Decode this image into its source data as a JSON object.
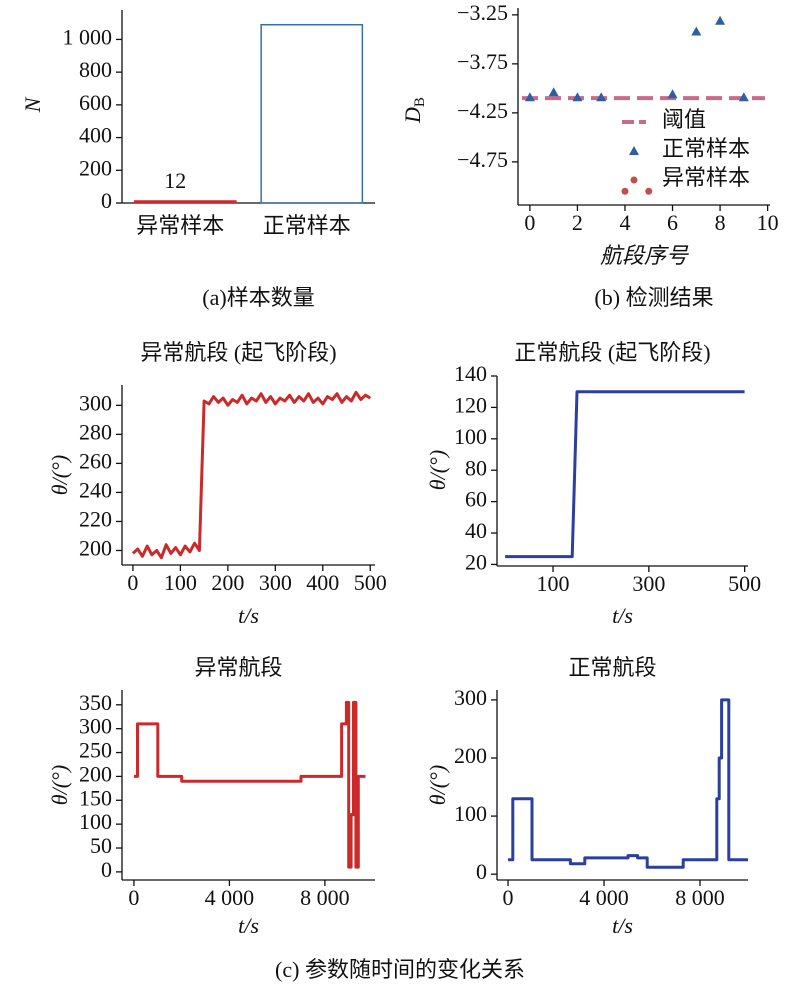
{
  "chart_data": [
    {
      "type": "bar",
      "caption": "(a)样本数量",
      "ylabel": "N",
      "categories": [
        "异常样本",
        "正常样本"
      ],
      "values": [
        12,
        1090
      ],
      "colors": [
        "#cc2a2a",
        "#3a6ea8"
      ],
      "bar_styles": [
        "filled",
        "outline"
      ],
      "data_labels": [
        true,
        false
      ],
      "ylim": [
        0,
        1180
      ],
      "yticks": [
        0,
        200,
        400,
        600,
        800,
        {
          "value": 1000,
          "label": "1 000"
        }
      ]
    },
    {
      "type": "scatter",
      "caption": "(b) 检测结果",
      "xlabel": "航段序号",
      "ylabel": {
        "main": "D",
        "sub": "B"
      },
      "series": [
        {
          "name": "正常样本",
          "color": "#2e5fa3",
          "marker": "triangle",
          "x": [
            0,
            1,
            2,
            3,
            6,
            7,
            8,
            9
          ],
          "values": [
            -4.09,
            -4.04,
            -4.09,
            -4.09,
            -4.06,
            -3.42,
            -3.31,
            -4.09
          ]
        },
        {
          "name": "异常样本",
          "color": "#c0504d",
          "marker": "circle",
          "x": [
            4,
            5
          ],
          "values": [
            -5.05,
            -5.05
          ]
        }
      ],
      "threshold": {
        "name": "阈值",
        "value": -4.1,
        "color": "#c96a8a"
      },
      "legend": "lower right",
      "xlim": [
        -0.5,
        10.1
      ],
      "xticks": [
        0,
        2,
        4,
        6,
        8,
        10
      ],
      "ylim": [
        -5.19,
        -3.18
      ],
      "yticks": [
        {
          "value": -3.25,
          "label": "−3.25"
        },
        {
          "value": -3.75,
          "label": "−3.75"
        },
        {
          "value": -4.25,
          "label": "−4.25"
        },
        {
          "value": -4.75,
          "label": "−4.75"
        }
      ]
    },
    {
      "type": "line",
      "title": "异常航段 (起飞阶段)",
      "xlabel": "t/s",
      "ylabel": "θ/(°)",
      "color": "#cc2a2a",
      "x": [
        0,
        10,
        20,
        30,
        40,
        50,
        60,
        70,
        80,
        90,
        100,
        110,
        120,
        130,
        140,
        150,
        160,
        170,
        180,
        190,
        200,
        210,
        220,
        230,
        240,
        250,
        260,
        270,
        280,
        290,
        300,
        310,
        320,
        330,
        340,
        350,
        360,
        370,
        380,
        390,
        400,
        410,
        420,
        430,
        440,
        450,
        460,
        470,
        480,
        490,
        500
      ],
      "values": [
        198,
        201,
        196,
        203,
        197,
        200,
        195,
        204,
        198,
        202,
        197,
        203,
        199,
        205,
        200,
        303,
        301,
        306,
        302,
        305,
        300,
        304,
        302,
        307,
        301,
        305,
        303,
        308,
        302,
        306,
        301,
        305,
        303,
        307,
        302,
        306,
        303,
        308,
        302,
        305,
        301,
        306,
        304,
        308,
        302,
        306,
        303,
        309,
        304,
        307,
        305
      ],
      "xlim": [
        -23,
        510
      ],
      "xticks": [
        0,
        100,
        200,
        300,
        400,
        500
      ],
      "ylim": [
        190,
        314
      ],
      "yticks": [
        200,
        220,
        240,
        260,
        280,
        300
      ]
    },
    {
      "type": "line",
      "title": "正常航段 (起飞阶段)",
      "xlabel": "t/s",
      "ylabel": "θ/(°)",
      "color": "#2a3f9e",
      "x": [
        0,
        140,
        150,
        500
      ],
      "values": [
        25,
        25,
        130,
        130
      ],
      "xlim": [
        -17,
        507
      ],
      "xticks": [
        100,
        300,
        500
      ],
      "ylim": [
        19,
        140
      ],
      "yticks": [
        20,
        40,
        60,
        80,
        100,
        120,
        140
      ]
    },
    {
      "type": "line",
      "title": "异常航段",
      "xlabel": "t/s",
      "ylabel": "θ/(°)",
      "color": "#cc2a2a",
      "x": [
        0,
        150,
        150,
        1000,
        1000,
        2000,
        2000,
        7000,
        7000,
        8700,
        8700,
        8900,
        8900,
        9000,
        9000,
        9100,
        9100,
        9200,
        9200,
        9300,
        9300,
        9400,
        9400,
        9700
      ],
      "values": [
        200,
        200,
        310,
        310,
        200,
        200,
        190,
        190,
        200,
        200,
        310,
        310,
        355,
        355,
        10,
        10,
        120,
        120,
        355,
        355,
        10,
        10,
        200,
        200
      ],
      "xlim": [
        -500,
        10100
      ],
      "xticks": [
        0,
        {
          "value": 4000,
          "label": "4 000"
        },
        {
          "value": 8000,
          "label": "8 000"
        }
      ],
      "ylim": [
        -17,
        381
      ],
      "yticks": [
        0,
        50,
        100,
        150,
        200,
        250,
        300,
        350
      ]
    },
    {
      "type": "line",
      "title": "正常航段",
      "xlabel": "t/s",
      "ylabel": "θ/(°)",
      "color": "#2a3f9e",
      "x": [
        0,
        200,
        200,
        1000,
        1000,
        2600,
        2600,
        3200,
        3200,
        5000,
        5000,
        5400,
        5400,
        5800,
        5800,
        7300,
        7300,
        8700,
        8700,
        8800,
        8800,
        8900,
        8900,
        9200,
        9200,
        10000
      ],
      "values": [
        25,
        25,
        130,
        130,
        25,
        25,
        18,
        18,
        28,
        28,
        32,
        32,
        28,
        28,
        12,
        12,
        25,
        25,
        130,
        130,
        200,
        200,
        300,
        300,
        25,
        25
      ],
      "xlim": [
        -460,
        10000
      ],
      "xticks": [
        0,
        {
          "value": 4000,
          "label": "4 000"
        },
        {
          "value": 8000,
          "label": "8 000"
        }
      ],
      "ylim": [
        -10,
        317
      ],
      "yticks": [
        0,
        100,
        200,
        300
      ]
    }
  ],
  "figure": {
    "caption": "(c) 参数随时间的变化关系"
  }
}
